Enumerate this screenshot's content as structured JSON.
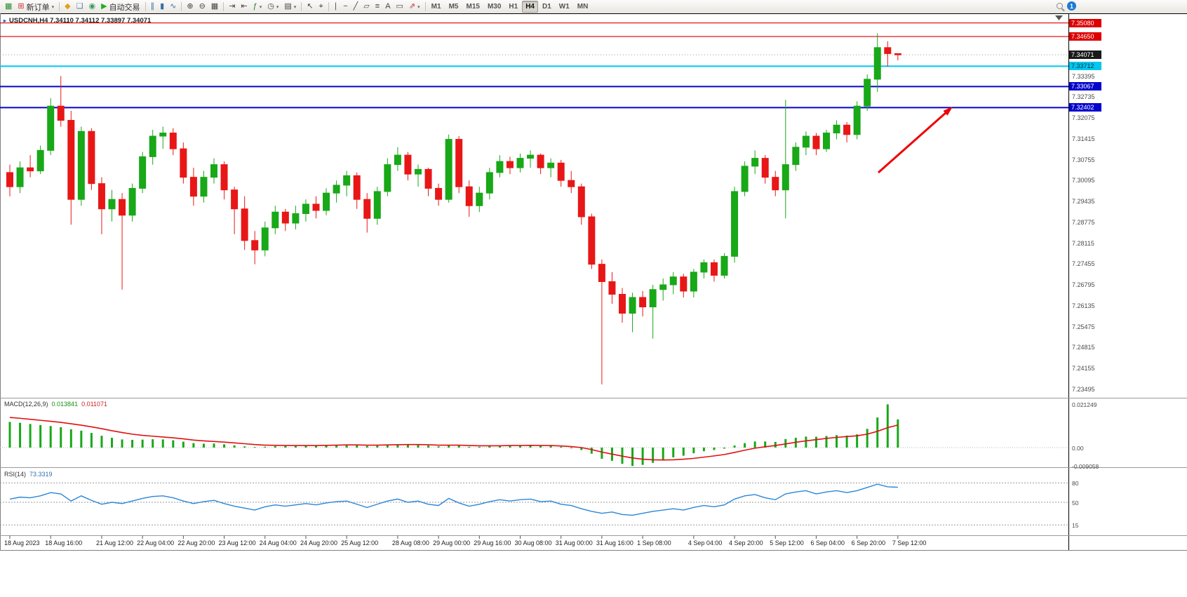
{
  "toolbar": {
    "buttons": [
      {
        "name": "new-chart-button",
        "glyph": "▦",
        "glyph_color": "#2e8b2e"
      },
      {
        "name": "new-order-button",
        "glyph": "⊞",
        "glyph_color": "#cc3333",
        "label": "新订单",
        "caret": true
      },
      {
        "name": "sep-1",
        "sep": true
      },
      {
        "name": "market-button",
        "glyph": "◆",
        "glyph_color": "#e0a020"
      },
      {
        "name": "chat-button",
        "glyph": "❏",
        "glyph_color": "#5a78a0"
      },
      {
        "name": "community-button",
        "glyph": "◉",
        "glyph_color": "#3a9a5c"
      },
      {
        "name": "autotrading-button",
        "glyph": "▶",
        "glyph_color": "#1fae1f",
        "label": "自动交易"
      },
      {
        "name": "sep-2",
        "sep": true
      },
      {
        "name": "bar-chart-button",
        "glyph": "∥",
        "glyph_color": "#3a6ea8"
      },
      {
        "name": "candlestick-chart-button",
        "glyph": "▮",
        "glyph_color": "#3a6ea8"
      },
      {
        "name": "line-chart-button",
        "glyph": "∿",
        "glyph_color": "#3a6ea8"
      },
      {
        "name": "sep-3",
        "sep": true
      },
      {
        "name": "zoom-in-button",
        "glyph": "⊕",
        "glyph_color": "#444"
      },
      {
        "name": "zoom-out-button",
        "glyph": "⊖",
        "glyph_color": "#444"
      },
      {
        "name": "tile-windows-button",
        "glyph": "▦",
        "glyph_color": "#444"
      },
      {
        "name": "sep-4",
        "sep": true
      },
      {
        "name": "auto-scroll-button",
        "glyph": "⇥",
        "glyph_color": "#444"
      },
      {
        "name": "chart-shift-button",
        "glyph": "⇤",
        "glyph_color": "#444"
      },
      {
        "name": "indicators-button",
        "glyph": "ƒ",
        "glyph_color": "#2a7a2a",
        "caret": true
      },
      {
        "name": "periods-button",
        "glyph": "◷",
        "glyph_color": "#444",
        "caret": true
      },
      {
        "name": "templates-button",
        "glyph": "▤",
        "glyph_color": "#444",
        "caret": true
      },
      {
        "name": "sep-5",
        "sep": true
      },
      {
        "name": "cursor-button",
        "glyph": "↖",
        "glyph_color": "#444"
      },
      {
        "name": "crosshair-button",
        "glyph": "⌖",
        "glyph_color": "#444"
      },
      {
        "name": "sep-6",
        "sep": true
      },
      {
        "name": "vertical-line-button",
        "glyph": "∣",
        "glyph_color": "#444"
      },
      {
        "name": "horizontal-line-button",
        "glyph": "−",
        "glyph_color": "#444"
      },
      {
        "name": "trendline-button",
        "glyph": "╱",
        "glyph_color": "#444"
      },
      {
        "name": "channel-button",
        "glyph": "▱",
        "glyph_color": "#444"
      },
      {
        "name": "fibonacci-button",
        "glyph": "≡",
        "glyph_color": "#444"
      },
      {
        "name": "text-button",
        "glyph": "A",
        "glyph_color": "#444"
      },
      {
        "name": "text-label-button",
        "glyph": "▭",
        "glyph_color": "#444"
      },
      {
        "name": "arrows-button",
        "glyph": "⇗",
        "glyph_color": "#c03030",
        "caret": true
      },
      {
        "name": "sep-7",
        "sep": true
      }
    ],
    "timeframes": {
      "items": [
        "M1",
        "M5",
        "M15",
        "M30",
        "H1",
        "H4",
        "D1",
        "W1",
        "MN"
      ],
      "active": "H4"
    },
    "notification": {
      "count": "1"
    }
  },
  "chart": {
    "marker_glyph": "▸",
    "symbol_title": "USDCNH,H4 7.34110 7.34112 7.33897 7.34071",
    "macd_label": "MACD(12,26,9)",
    "macd_values": [
      "0.013841",
      "0.011071"
    ],
    "rsi_label": "RSI(14)",
    "rsi_value": "73.3319",
    "y_axis_labels": [
      "7.33395",
      "7.32735",
      "7.32075",
      "7.31415",
      "7.30755",
      "7.30095",
      "7.29435",
      "7.28775",
      "7.28115",
      "7.27455",
      "7.26795",
      "7.26135",
      "7.25475",
      "7.24815",
      "7.24155",
      "7.23495"
    ],
    "macd_axis_labels": [
      "0.021249",
      "0.00",
      "-0.009058"
    ],
    "rsi_axis_labels": [
      "80",
      "50",
      "15"
    ],
    "price_tags": [
      {
        "name": "resistance-tag-7-35080",
        "text": "7.35080",
        "price": 7.3508,
        "bg": "#dd0000",
        "fg": "#ffffff",
        "line": "#dd0000",
        "lw": 1.2
      },
      {
        "name": "resistance-tag-7-34650",
        "text": "7.34650",
        "price": 7.3465,
        "bg": "#dd0000",
        "fg": "#ffffff",
        "line": "#dd0000",
        "lw": 1.2
      },
      {
        "name": "current-price-tag",
        "text": "7.34071",
        "price": 7.34071,
        "bg": "#1a1a1a",
        "fg": "#ffffff",
        "line": null,
        "lw": 0
      },
      {
        "name": "level-tag-7-33712",
        "text": "7.33712",
        "price": 7.33712,
        "bg": "#00c6f0",
        "fg": "#00333d",
        "line": "#00c6f0",
        "lw": 2
      },
      {
        "name": "support-tag-7-33067",
        "text": "7.33067",
        "price": 7.33067,
        "bg": "#0404cc",
        "fg": "#ffffff",
        "line": "#0404cc",
        "lw": 2
      },
      {
        "name": "support-tag-7-32402",
        "text": "7.32402",
        "price": 7.32402,
        "bg": "#0404cc",
        "fg": "#ffffff",
        "line": "#0404cc",
        "lw": 2
      }
    ],
    "x_axis_labels": [
      "18 Aug 2023",
      "18 Aug 16:00",
      "21 Aug 12:00",
      "22 Aug 04:00",
      "22 Aug 20:00",
      "23 Aug 12:00",
      "24 Aug 04:00",
      "24 Aug 20:00",
      "25 Aug 12:00",
      "28 Aug 08:00",
      "29 Aug 00:00",
      "29 Aug 16:00",
      "30 Aug 08:00",
      "31 Aug 00:00",
      "31 Aug 16:00",
      "1 Sep 08:00",
      "4 Sep 04:00",
      "4 Sep 20:00",
      "5 Sep 12:00",
      "6 Sep 04:00",
      "6 Sep 20:00",
      "7 Sep 12:00"
    ]
  },
  "colors": {
    "bull": "#18a818",
    "bear": "#e81717",
    "macd_hist": "#18a818",
    "macd_signal": "#e01010",
    "rsi": "#2a86d8",
    "arrow": "#f00000"
  },
  "chart_data": {
    "type": "candlestick",
    "symbol": "USDCNH",
    "timeframe": "H4",
    "ohlc_current": {
      "open": "7.34110",
      "high": "7.34112",
      "low": "7.33897",
      "close": "7.34071"
    },
    "ylim": [
      7.2325,
      7.3525
    ],
    "candles": [
      [
        7.3035,
        7.306,
        7.296,
        7.299
      ],
      [
        7.299,
        7.307,
        7.297,
        7.305
      ],
      [
        7.305,
        7.309,
        7.302,
        7.304
      ],
      [
        7.304,
        7.312,
        7.303,
        7.3105
      ],
      [
        7.3105,
        7.327,
        7.309,
        7.3245
      ],
      [
        7.3245,
        7.334,
        7.318,
        7.32
      ],
      [
        7.32,
        7.323,
        7.287,
        7.295
      ],
      [
        7.295,
        7.318,
        7.293,
        7.3165
      ],
      [
        7.3165,
        7.3175,
        7.298,
        7.3
      ],
      [
        7.3,
        7.302,
        7.284,
        7.292
      ],
      [
        7.292,
        7.298,
        7.288,
        7.295
      ],
      [
        7.295,
        7.297,
        7.2665,
        7.29
      ],
      [
        7.29,
        7.3,
        7.288,
        7.2985
      ],
      [
        7.2985,
        7.31,
        7.297,
        7.3085
      ],
      [
        7.3085,
        7.317,
        7.306,
        7.315
      ],
      [
        7.315,
        7.318,
        7.311,
        7.316
      ],
      [
        7.316,
        7.3175,
        7.309,
        7.311
      ],
      [
        7.311,
        7.313,
        7.3,
        7.302
      ],
      [
        7.302,
        7.305,
        7.293,
        7.296
      ],
      [
        7.296,
        7.304,
        7.294,
        7.302
      ],
      [
        7.302,
        7.308,
        7.3,
        7.306
      ],
      [
        7.306,
        7.307,
        7.295,
        7.298
      ],
      [
        7.298,
        7.299,
        7.284,
        7.292
      ],
      [
        7.292,
        7.296,
        7.279,
        7.282
      ],
      [
        7.282,
        7.285,
        7.2745,
        7.279
      ],
      [
        7.279,
        7.288,
        7.277,
        7.286
      ],
      [
        7.286,
        7.293,
        7.284,
        7.291
      ],
      [
        7.291,
        7.292,
        7.285,
        7.2875
      ],
      [
        7.2875,
        7.293,
        7.2855,
        7.2905
      ],
      [
        7.2905,
        7.295,
        7.288,
        7.2935
      ],
      [
        7.2935,
        7.296,
        7.289,
        7.2915
      ],
      [
        7.2915,
        7.2985,
        7.29,
        7.297
      ],
      [
        7.297,
        7.301,
        7.294,
        7.2995
      ],
      [
        7.2995,
        7.304,
        7.296,
        7.3025
      ],
      [
        7.3025,
        7.3035,
        7.292,
        7.295
      ],
      [
        7.295,
        7.297,
        7.2845,
        7.289
      ],
      [
        7.289,
        7.299,
        7.287,
        7.2975
      ],
      [
        7.2975,
        7.308,
        7.296,
        7.306
      ],
      [
        7.306,
        7.3115,
        7.304,
        7.309
      ],
      [
        7.309,
        7.31,
        7.301,
        7.303
      ],
      [
        7.303,
        7.306,
        7.299,
        7.3045
      ],
      [
        7.3045,
        7.305,
        7.296,
        7.2985
      ],
      [
        7.2985,
        7.3,
        7.293,
        7.295
      ],
      [
        7.295,
        7.3155,
        7.294,
        7.314
      ],
      [
        7.314,
        7.315,
        7.297,
        7.299
      ],
      [
        7.299,
        7.301,
        7.2895,
        7.293
      ],
      [
        7.293,
        7.299,
        7.291,
        7.297
      ],
      [
        7.297,
        7.305,
        7.295,
        7.3035
      ],
      [
        7.3035,
        7.309,
        7.302,
        7.307
      ],
      [
        7.307,
        7.3085,
        7.303,
        7.305
      ],
      [
        7.305,
        7.3095,
        7.3035,
        7.308
      ],
      [
        7.308,
        7.3105,
        7.305,
        7.309
      ],
      [
        7.309,
        7.3095,
        7.303,
        7.305
      ],
      [
        7.305,
        7.308,
        7.302,
        7.3065
      ],
      [
        7.3065,
        7.3075,
        7.299,
        7.301
      ],
      [
        7.301,
        7.304,
        7.297,
        7.299
      ],
      [
        7.299,
        7.3,
        7.287,
        7.2895
      ],
      [
        7.2895,
        7.2905,
        7.273,
        7.2745
      ],
      [
        7.2745,
        7.276,
        7.2365,
        7.269
      ],
      [
        7.269,
        7.272,
        7.262,
        7.265
      ],
      [
        7.265,
        7.267,
        7.256,
        7.259
      ],
      [
        7.259,
        7.2655,
        7.253,
        7.264
      ],
      [
        7.264,
        7.266,
        7.258,
        7.261
      ],
      [
        7.261,
        7.268,
        7.251,
        7.2665
      ],
      [
        7.2665,
        7.27,
        7.263,
        7.268
      ],
      [
        7.268,
        7.272,
        7.265,
        7.2705
      ],
      [
        7.2705,
        7.2715,
        7.264,
        7.266
      ],
      [
        7.266,
        7.273,
        7.264,
        7.272
      ],
      [
        7.272,
        7.276,
        7.27,
        7.275
      ],
      [
        7.275,
        7.276,
        7.269,
        7.271
      ],
      [
        7.271,
        7.278,
        7.27,
        7.277
      ],
      [
        7.277,
        7.299,
        7.275,
        7.2975
      ],
      [
        7.2975,
        7.307,
        7.296,
        7.3055
      ],
      [
        7.3055,
        7.3105,
        7.303,
        7.308
      ],
      [
        7.308,
        7.309,
        7.3,
        7.302
      ],
      [
        7.302,
        7.304,
        7.296,
        7.298
      ],
      [
        7.298,
        7.3265,
        7.289,
        7.306
      ],
      [
        7.306,
        7.313,
        7.304,
        7.3115
      ],
      [
        7.3115,
        7.3165,
        7.309,
        7.315
      ],
      [
        7.315,
        7.316,
        7.309,
        7.311
      ],
      [
        7.311,
        7.317,
        7.31,
        7.316
      ],
      [
        7.316,
        7.32,
        7.314,
        7.3185
      ],
      [
        7.3185,
        7.3195,
        7.313,
        7.3155
      ],
      [
        7.3155,
        7.326,
        7.314,
        7.3245
      ],
      [
        7.3245,
        7.3345,
        7.323,
        7.333
      ],
      [
        7.333,
        7.3475,
        7.329,
        7.343
      ],
      [
        7.343,
        7.345,
        7.337,
        7.3411
      ],
      [
        7.3411,
        7.34112,
        7.33897,
        7.34071
      ]
    ],
    "x_label_indices": [
      0,
      4,
      9,
      13,
      17,
      21,
      25,
      29,
      33,
      38,
      42,
      46,
      50,
      54,
      58,
      62,
      67,
      71,
      75,
      79,
      83,
      87
    ],
    "macd": {
      "params": "12,26,9",
      "scale_max": 0.021249,
      "scale_min": -0.009058,
      "histogram": [
        0.0126,
        0.0122,
        0.0116,
        0.0111,
        0.0106,
        0.01,
        0.009,
        0.0083,
        0.0072,
        0.0058,
        0.0048,
        0.004,
        0.0038,
        0.0039,
        0.0041,
        0.004,
        0.0036,
        0.0029,
        0.0022,
        0.0019,
        0.002,
        0.0016,
        0.0011,
        0.0006,
        0.0003,
        0.0004,
        0.0007,
        0.0008,
        0.0008,
        0.0009,
        0.0009,
        0.0011,
        0.0013,
        0.0015,
        0.0012,
        0.0008,
        0.0009,
        0.0013,
        0.0017,
        0.0015,
        0.0014,
        0.001,
        0.0006,
        0.0011,
        0.001,
        0.0004,
        0.0004,
        0.0007,
        0.001,
        0.001,
        0.0011,
        0.0011,
        0.0009,
        0.0009,
        0.0004,
        0.0,
        -0.0012,
        -0.003,
        -0.0055,
        -0.0065,
        -0.008,
        -0.009058,
        -0.0085,
        -0.0075,
        -0.006,
        -0.0048,
        -0.004,
        -0.0028,
        -0.0018,
        -0.0012,
        -0.0005,
        0.001,
        0.0022,
        0.003,
        0.003,
        0.0028,
        0.0042,
        0.0048,
        0.0054,
        0.0053,
        0.0057,
        0.0061,
        0.0059,
        0.0065,
        0.0092,
        0.0148,
        0.021249,
        0.013841
      ],
      "signal": [
        0.0148,
        0.0144,
        0.0139,
        0.0134,
        0.0129,
        0.0124,
        0.0117,
        0.011,
        0.0102,
        0.0093,
        0.0083,
        0.0074,
        0.0066,
        0.006,
        0.0056,
        0.0052,
        0.0048,
        0.0043,
        0.0037,
        0.0033,
        0.003,
        0.0027,
        0.0023,
        0.0019,
        0.0015,
        0.0012,
        0.0011,
        0.001,
        0.001,
        0.001,
        0.001,
        0.0011,
        0.0012,
        0.0013,
        0.0013,
        0.0012,
        0.0012,
        0.0013,
        0.0014,
        0.0015,
        0.0015,
        0.0014,
        0.0012,
        0.0012,
        0.0012,
        0.001,
        0.0009,
        0.0009,
        0.0009,
        0.001,
        0.001,
        0.0011,
        0.001,
        0.001,
        0.0008,
        0.0005,
        0.0,
        -0.001,
        -0.0022,
        -0.0032,
        -0.0042,
        -0.0051,
        -0.0057,
        -0.006,
        -0.0061,
        -0.006,
        -0.0057,
        -0.0053,
        -0.0047,
        -0.0041,
        -0.0034,
        -0.0024,
        -0.0013,
        -0.0003,
        0.0004,
        0.001,
        0.0018,
        0.0026,
        0.0033,
        0.0039,
        0.0045,
        0.005,
        0.0054,
        0.0058,
        0.0066,
        0.008,
        0.0098,
        0.011071
      ]
    },
    "rsi": {
      "period": 14,
      "last": 73.3319,
      "levels": [
        80,
        50,
        15
      ],
      "values": [
        55,
        58,
        57,
        60,
        65,
        63,
        52,
        60,
        53,
        47,
        50,
        48,
        52,
        56,
        59,
        60,
        57,
        52,
        48,
        51,
        53,
        48,
        44,
        41,
        38,
        43,
        46,
        44,
        46,
        48,
        46,
        49,
        51,
        52,
        47,
        42,
        47,
        52,
        55,
        50,
        52,
        47,
        45,
        56,
        49,
        44,
        47,
        51,
        54,
        52,
        54,
        55,
        51,
        52,
        47,
        45,
        40,
        36,
        33,
        35,
        31,
        30,
        33,
        36,
        38,
        40,
        38,
        42,
        45,
        43,
        46,
        55,
        60,
        62,
        57,
        54,
        63,
        66,
        68,
        63,
        66,
        68,
        65,
        68,
        73,
        78,
        74,
        73.33
      ]
    }
  }
}
